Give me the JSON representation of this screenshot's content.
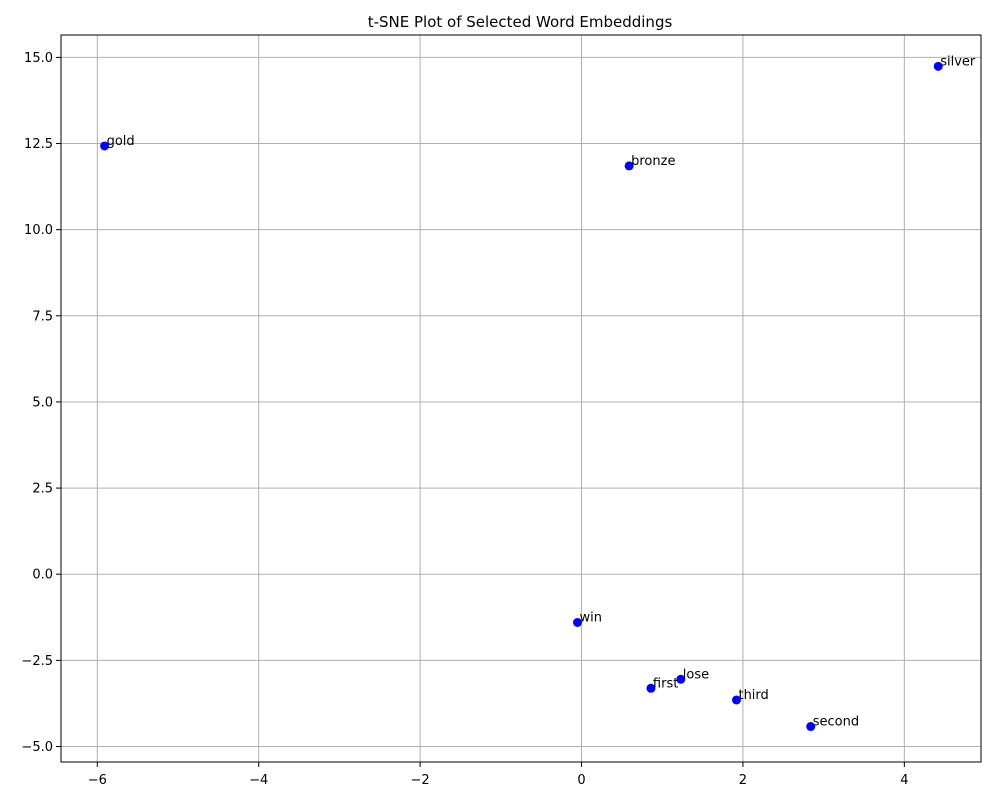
{
  "chart_data": {
    "type": "scatter",
    "title": "t-SNE Plot of Selected Word Embeddings",
    "xlabel": "",
    "ylabel": "",
    "xlim": [
      -6.45,
      4.95
    ],
    "ylim": [
      -5.45,
      15.65
    ],
    "xticks": [
      -6,
      -4,
      -2,
      0,
      2,
      4
    ],
    "yticks": [
      -5.0,
      -2.5,
      0.0,
      2.5,
      5.0,
      7.5,
      10.0,
      12.5,
      15.0
    ],
    "ytick_labels": [
      "−5.0",
      "−2.5",
      "0.0",
      "2.5",
      "5.0",
      "7.5",
      "10.0",
      "12.5",
      "15.0"
    ],
    "xtick_labels": [
      "−6",
      "−4",
      "−2",
      "0",
      "2",
      "4"
    ],
    "grid": true,
    "marker_color": "#0000ff",
    "points": [
      {
        "label": "silver",
        "x": 4.42,
        "y": 14.74
      },
      {
        "label": "gold",
        "x": -5.91,
        "y": 12.43
      },
      {
        "label": "bronze",
        "x": 0.59,
        "y": 11.85
      },
      {
        "label": "win",
        "x": -0.05,
        "y": -1.4
      },
      {
        "label": "lose",
        "x": 1.23,
        "y": -3.05
      },
      {
        "label": "first",
        "x": 0.86,
        "y": -3.31
      },
      {
        "label": "third",
        "x": 1.92,
        "y": -3.65
      },
      {
        "label": "second",
        "x": 2.84,
        "y": -4.42
      }
    ]
  }
}
